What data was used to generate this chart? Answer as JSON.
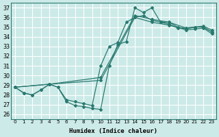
{
  "xlabel": "Humidex (Indice chaleur)",
  "xlim": [
    -0.5,
    23.5
  ],
  "ylim": [
    25.5,
    37.5
  ],
  "xticks": [
    0,
    1,
    2,
    3,
    4,
    5,
    6,
    7,
    8,
    9,
    10,
    11,
    12,
    13,
    14,
    15,
    16,
    17,
    18,
    19,
    20,
    21,
    22,
    23
  ],
  "yticks": [
    26,
    27,
    28,
    29,
    30,
    31,
    32,
    33,
    34,
    35,
    36,
    37
  ],
  "bg_color": "#cceae8",
  "grid_color": "#ffffff",
  "line_color": "#2a7a70",
  "line1_x": [
    0,
    1,
    2,
    3,
    4,
    5,
    6,
    7,
    8,
    9,
    10,
    11,
    12,
    13,
    14,
    15,
    16,
    17,
    18,
    19,
    20,
    21,
    22,
    23
  ],
  "line1_y": [
    28.8,
    28.2,
    28.0,
    28.5,
    29.1,
    28.8,
    27.3,
    26.9,
    26.8,
    26.6,
    26.5,
    31.0,
    33.2,
    33.5,
    37.0,
    36.5,
    37.0,
    35.5,
    35.5,
    35.0,
    34.8,
    35.0,
    35.0,
    34.5
  ],
  "line2_x": [
    0,
    1,
    2,
    3,
    4,
    5,
    6,
    7,
    8,
    9,
    10,
    11,
    12,
    13,
    14,
    15,
    16,
    17,
    18,
    19,
    20,
    21,
    22,
    23
  ],
  "line2_y": [
    28.8,
    28.2,
    28.0,
    28.5,
    29.1,
    28.8,
    27.5,
    27.3,
    27.1,
    26.9,
    31.0,
    33.0,
    33.4,
    35.5,
    36.0,
    36.2,
    35.7,
    35.5,
    35.3,
    34.9,
    34.9,
    35.0,
    35.0,
    34.5
  ],
  "line3_x": [
    0,
    4,
    10,
    14,
    16,
    18,
    20,
    21,
    22,
    23
  ],
  "line3_y": [
    28.8,
    29.1,
    29.8,
    36.2,
    35.8,
    35.5,
    34.9,
    35.0,
    35.1,
    34.7
  ],
  "line4_x": [
    0,
    4,
    10,
    14,
    16,
    18,
    20,
    21,
    22,
    23
  ],
  "line4_y": [
    28.8,
    29.1,
    29.5,
    36.0,
    35.5,
    35.2,
    34.7,
    34.8,
    34.9,
    34.3
  ]
}
